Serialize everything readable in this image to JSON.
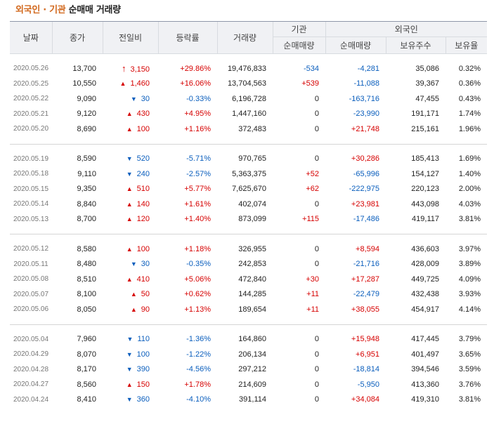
{
  "title": {
    "part1": "외국인 · 기관",
    "part2": " 순매매 거래량"
  },
  "headers": {
    "date": "날짜",
    "close": "종가",
    "change": "전일비",
    "rate": "등락률",
    "volume": "거래량",
    "institution": "기관",
    "inst_net": "순매매량",
    "foreign": "외국인",
    "foreign_net": "순매매량",
    "holdings": "보유주수",
    "holding_rate": "보유율"
  },
  "colors": {
    "up": "#d60000",
    "down": "#0a5ebd",
    "title_accent": "#d2691e"
  },
  "groups": [
    [
      {
        "date": "2020.05.26",
        "close": "13,700",
        "dir": "limit-up",
        "change": "3,150",
        "rate": "+29.86%",
        "volume": "19,476,833",
        "inst": "-534",
        "foreign": "-4,281",
        "holdings": "35,086",
        "hold_rate": "0.32%"
      },
      {
        "date": "2020.05.25",
        "close": "10,550",
        "dir": "up",
        "change": "1,460",
        "rate": "+16.06%",
        "volume": "13,704,563",
        "inst": "+539",
        "foreign": "-11,088",
        "holdings": "39,367",
        "hold_rate": "0.36%"
      },
      {
        "date": "2020.05.22",
        "close": "9,090",
        "dir": "down",
        "change": "30",
        "rate": "-0.33%",
        "volume": "6,196,728",
        "inst": "0",
        "foreign": "-163,716",
        "holdings": "47,455",
        "hold_rate": "0.43%"
      },
      {
        "date": "2020.05.21",
        "close": "9,120",
        "dir": "up",
        "change": "430",
        "rate": "+4.95%",
        "volume": "1,447,160",
        "inst": "0",
        "foreign": "-23,990",
        "holdings": "191,171",
        "hold_rate": "1.74%"
      },
      {
        "date": "2020.05.20",
        "close": "8,690",
        "dir": "up",
        "change": "100",
        "rate": "+1.16%",
        "volume": "372,483",
        "inst": "0",
        "foreign": "+21,748",
        "holdings": "215,161",
        "hold_rate": "1.96%"
      }
    ],
    [
      {
        "date": "2020.05.19",
        "close": "8,590",
        "dir": "down",
        "change": "520",
        "rate": "-5.71%",
        "volume": "970,765",
        "inst": "0",
        "foreign": "+30,286",
        "holdings": "185,413",
        "hold_rate": "1.69%"
      },
      {
        "date": "2020.05.18",
        "close": "9,110",
        "dir": "down",
        "change": "240",
        "rate": "-2.57%",
        "volume": "5,363,375",
        "inst": "+52",
        "foreign": "-65,996",
        "holdings": "154,127",
        "hold_rate": "1.40%"
      },
      {
        "date": "2020.05.15",
        "close": "9,350",
        "dir": "up",
        "change": "510",
        "rate": "+5.77%",
        "volume": "7,625,670",
        "inst": "+62",
        "foreign": "-222,975",
        "holdings": "220,123",
        "hold_rate": "2.00%"
      },
      {
        "date": "2020.05.14",
        "close": "8,840",
        "dir": "up",
        "change": "140",
        "rate": "+1.61%",
        "volume": "402,074",
        "inst": "0",
        "foreign": "+23,981",
        "holdings": "443,098",
        "hold_rate": "4.03%"
      },
      {
        "date": "2020.05.13",
        "close": "8,700",
        "dir": "up",
        "change": "120",
        "rate": "+1.40%",
        "volume": "873,099",
        "inst": "+115",
        "foreign": "-17,486",
        "holdings": "419,117",
        "hold_rate": "3.81%"
      }
    ],
    [
      {
        "date": "2020.05.12",
        "close": "8,580",
        "dir": "up",
        "change": "100",
        "rate": "+1.18%",
        "volume": "326,955",
        "inst": "0",
        "foreign": "+8,594",
        "holdings": "436,603",
        "hold_rate": "3.97%"
      },
      {
        "date": "2020.05.11",
        "close": "8,480",
        "dir": "down",
        "change": "30",
        "rate": "-0.35%",
        "volume": "242,853",
        "inst": "0",
        "foreign": "-21,716",
        "holdings": "428,009",
        "hold_rate": "3.89%"
      },
      {
        "date": "2020.05.08",
        "close": "8,510",
        "dir": "up",
        "change": "410",
        "rate": "+5.06%",
        "volume": "472,840",
        "inst": "+30",
        "foreign": "+17,287",
        "holdings": "449,725",
        "hold_rate": "4.09%"
      },
      {
        "date": "2020.05.07",
        "close": "8,100",
        "dir": "up",
        "change": "50",
        "rate": "+0.62%",
        "volume": "144,285",
        "inst": "+11",
        "foreign": "-22,479",
        "holdings": "432,438",
        "hold_rate": "3.93%"
      },
      {
        "date": "2020.05.06",
        "close": "8,050",
        "dir": "up",
        "change": "90",
        "rate": "+1.13%",
        "volume": "189,654",
        "inst": "+11",
        "foreign": "+38,055",
        "holdings": "454,917",
        "hold_rate": "4.14%"
      }
    ],
    [
      {
        "date": "2020.05.04",
        "close": "7,960",
        "dir": "down",
        "change": "110",
        "rate": "-1.36%",
        "volume": "164,860",
        "inst": "0",
        "foreign": "+15,948",
        "holdings": "417,445",
        "hold_rate": "3.79%"
      },
      {
        "date": "2020.04.29",
        "close": "8,070",
        "dir": "down",
        "change": "100",
        "rate": "-1.22%",
        "volume": "206,134",
        "inst": "0",
        "foreign": "+6,951",
        "holdings": "401,497",
        "hold_rate": "3.65%"
      },
      {
        "date": "2020.04.28",
        "close": "8,170",
        "dir": "down",
        "change": "390",
        "rate": "-4.56%",
        "volume": "297,212",
        "inst": "0",
        "foreign": "-18,814",
        "holdings": "394,546",
        "hold_rate": "3.59%"
      },
      {
        "date": "2020.04.27",
        "close": "8,560",
        "dir": "up",
        "change": "150",
        "rate": "+1.78%",
        "volume": "214,609",
        "inst": "0",
        "foreign": "-5,950",
        "holdings": "413,360",
        "hold_rate": "3.76%"
      },
      {
        "date": "2020.04.24",
        "close": "8,410",
        "dir": "down",
        "change": "360",
        "rate": "-4.10%",
        "volume": "391,114",
        "inst": "0",
        "foreign": "+34,084",
        "holdings": "419,310",
        "hold_rate": "3.81%"
      }
    ]
  ]
}
